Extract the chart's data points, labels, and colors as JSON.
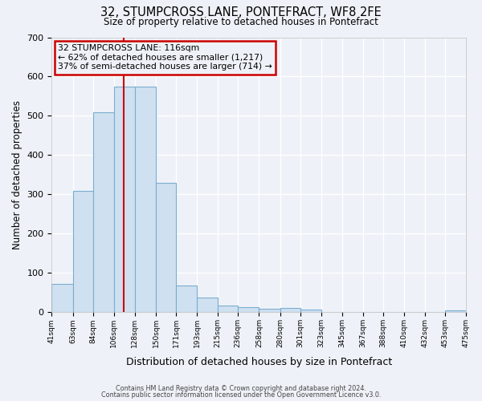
{
  "title": "32, STUMPCROSS LANE, PONTEFRACT, WF8 2FE",
  "subtitle": "Size of property relative to detached houses in Pontefract",
  "xlabel": "Distribution of detached houses by size in Pontefract",
  "ylabel": "Number of detached properties",
  "bar_color": "#cfe0f0",
  "bar_edge_color": "#7aaed0",
  "background_color": "#eef2f8",
  "grid_color": "#ffffff",
  "annotation_box_color": "#cc0000",
  "vline_color": "#cc0000",
  "vline_x": 116,
  "annotation_lines": [
    "32 STUMPCROSS LANE: 116sqm",
    "← 62% of detached houses are smaller (1,217)",
    "37% of semi-detached houses are larger (714) →"
  ],
  "bin_edges": [
    41,
    63,
    84,
    106,
    128,
    150,
    171,
    193,
    215,
    236,
    258,
    280,
    301,
    323,
    345,
    367,
    388,
    410,
    432,
    453,
    475
  ],
  "bin_heights": [
    72,
    310,
    510,
    575,
    575,
    330,
    68,
    37,
    18,
    13,
    8,
    11,
    7,
    0,
    0,
    0,
    0,
    0,
    0,
    5
  ],
  "ylim": [
    0,
    700
  ],
  "yticks": [
    0,
    100,
    200,
    300,
    400,
    500,
    600,
    700
  ],
  "footer_line1": "Contains HM Land Registry data © Crown copyright and database right 2024.",
  "footer_line2": "Contains public sector information licensed under the Open Government Licence v3.0."
}
